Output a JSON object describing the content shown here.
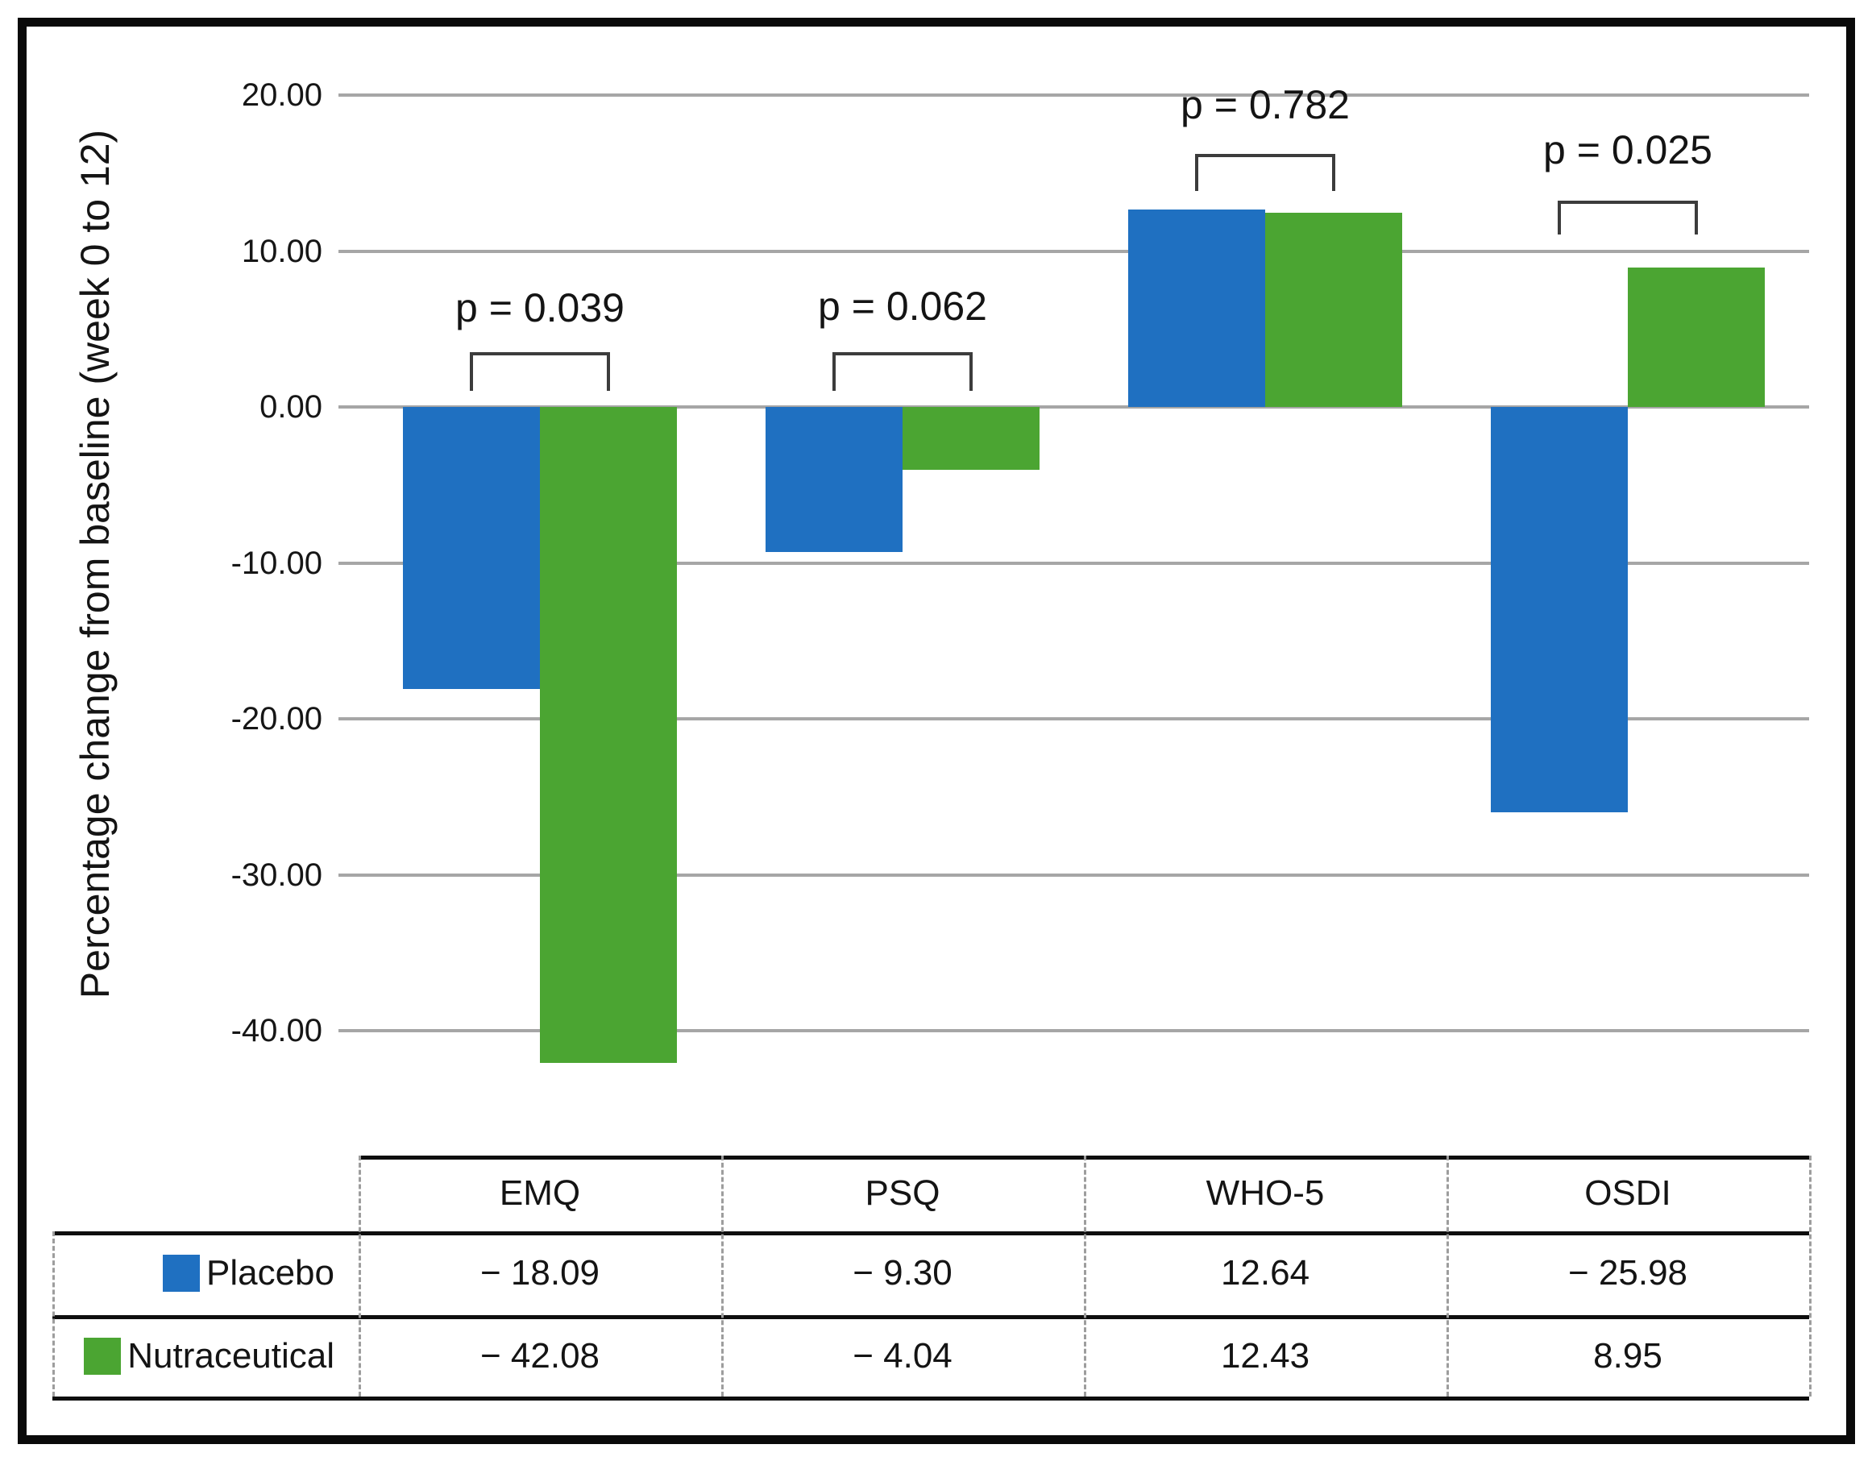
{
  "chart_data": {
    "type": "bar",
    "title": "",
    "ylabel": "Percentage change from baseline (week 0 to 12)",
    "xlabel": "",
    "categories": [
      "EMQ",
      "PSQ",
      "WHO-5",
      "OSDI"
    ],
    "series": [
      {
        "name": "Placebo",
        "color": "#1f70c1",
        "values": [
          -18.09,
          -9.3,
          12.64,
          -25.98
        ]
      },
      {
        "name": "Nutraceutical",
        "color": "#4ba532",
        "values": [
          -42.08,
          -4.04,
          12.43,
          8.95
        ]
      }
    ],
    "p_values": [
      "p = 0.039",
      "p = 0.062",
      "p = 0.782",
      "p = 0.025"
    ],
    "y_ticks": [
      "20.00",
      "10.00",
      "0.00",
      "-10.00",
      "-20.00",
      "-30.00",
      "-40.00"
    ],
    "y_tick_values": [
      20,
      10,
      0,
      -10,
      -20,
      -30,
      -40
    ],
    "ylim": [
      -45,
      22
    ],
    "grid": true,
    "gridline_color": "#a6a6a6",
    "legend_position": "data-table-left"
  },
  "table": {
    "columns": [
      "EMQ",
      "PSQ",
      "WHO-5",
      "OSDI"
    ],
    "rows": [
      {
        "label": "Placebo",
        "swatch": "#1f70c1",
        "values": [
          "− 18.09",
          "− 9.30",
          "12.64",
          "− 25.98"
        ]
      },
      {
        "label": "Nutraceutical",
        "swatch": "#4ba532",
        "values": [
          "− 42.08",
          "− 4.04",
          "12.43",
          "8.95"
        ]
      }
    ]
  }
}
